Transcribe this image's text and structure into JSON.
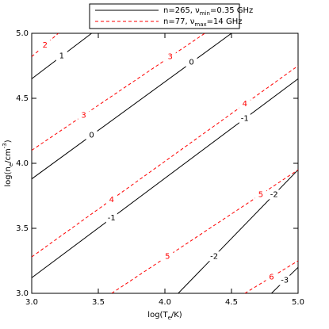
{
  "chart_data": {
    "type": "contour",
    "xlabel": [
      "log(T",
      "e",
      "/K)"
    ],
    "ylabel": [
      "log(n",
      "e",
      "/cm",
      "-3",
      ")"
    ],
    "xlim": [
      3.0,
      5.0
    ],
    "ylim": [
      3.0,
      5.0
    ],
    "xticks": [
      {
        "value": 3.0,
        "label": "3.0"
      },
      {
        "value": 3.5,
        "label": "3.5"
      },
      {
        "value": 4.0,
        "label": "4.0"
      },
      {
        "value": 4.5,
        "label": "4.5"
      },
      {
        "value": 5.0,
        "label": "5.0"
      }
    ],
    "yticks": [
      {
        "value": 3.0,
        "label": "3.0"
      },
      {
        "value": 3.5,
        "label": "3.5"
      },
      {
        "value": 4.0,
        "label": "4.0"
      },
      {
        "value": 4.5,
        "label": "4.5"
      },
      {
        "value": 5.0,
        "label": "5.0"
      }
    ],
    "series": [
      {
        "name": [
          "n=265, ν",
          "min",
          "=0.35 GHz"
        ],
        "color": "#000000",
        "dashed": false,
        "contours": [
          {
            "level": 1,
            "x": [
              3.0,
              3.45
            ],
            "y": [
              4.65,
              5.0
            ]
          },
          {
            "level": 0,
            "x": [
              3.0,
              4.5
            ],
            "y": [
              3.88,
              5.0
            ]
          },
          {
            "level": -1,
            "x": [
              3.0,
              5.0
            ],
            "y": [
              3.12,
              4.65
            ]
          },
          {
            "level": -2,
            "x": [
              4.1,
              5.0
            ],
            "y": [
              3.0,
              3.95
            ]
          },
          {
            "level": -3,
            "x": [
              4.8,
              5.0
            ],
            "y": [
              3.0,
              3.2
            ]
          }
        ]
      },
      {
        "name": [
          "n=77, ν",
          "max",
          "=14 GHz"
        ],
        "color": "#ff0000",
        "dashed": true,
        "contours": [
          {
            "level": 2,
            "x": [
              3.0,
              3.2
            ],
            "y": [
              4.82,
              5.0
            ]
          },
          {
            "level": 3,
            "x": [
              3.0,
              4.3
            ],
            "y": [
              4.1,
              5.0
            ]
          },
          {
            "level": 4,
            "x": [
              3.0,
              5.0
            ],
            "y": [
              3.28,
              4.75
            ]
          },
          {
            "level": 5,
            "x": [
              3.6,
              5.0
            ],
            "y": [
              3.0,
              3.95
            ]
          },
          {
            "level": 6,
            "x": [
              4.6,
              5.0
            ],
            "y": [
              3.0,
              3.25
            ]
          }
        ]
      }
    ]
  }
}
